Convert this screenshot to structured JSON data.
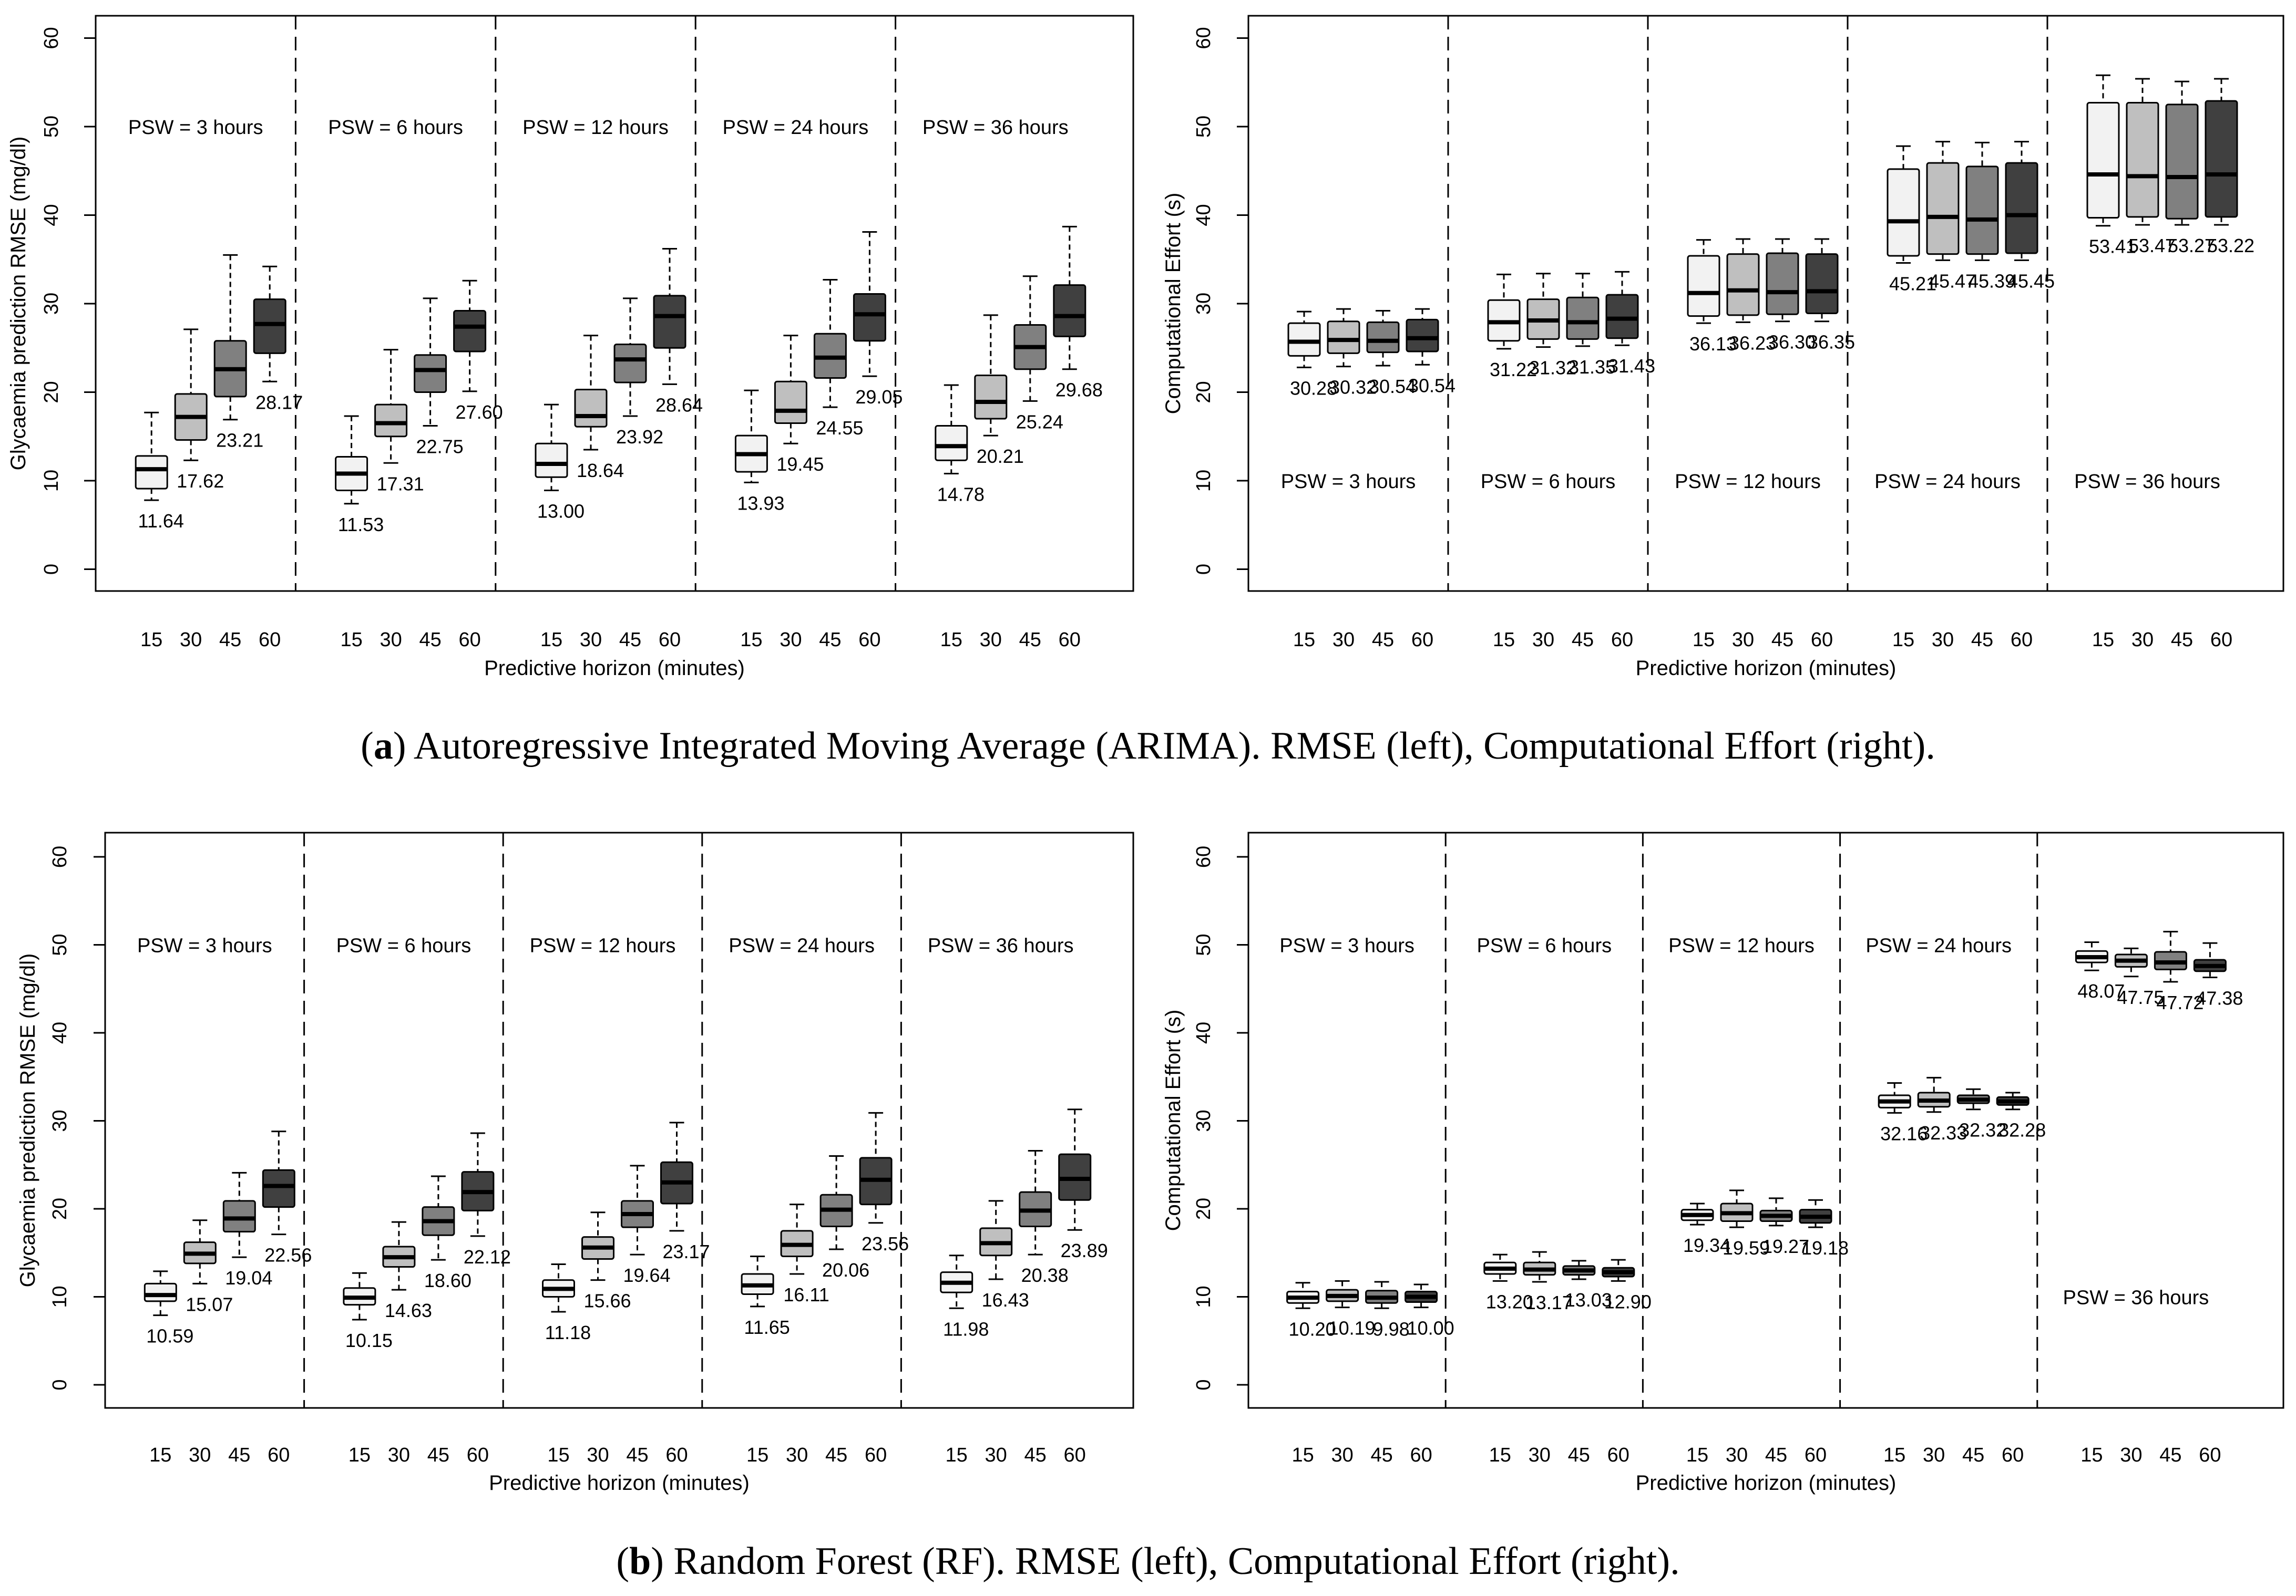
{
  "captions": [
    {
      "letter": "a",
      "text": ") Autoregressive Integrated Moving Average (ARIMA). RMSE (left), Computational Effort (right)."
    },
    {
      "letter": "b",
      "text": ") Random Forest (RF). RMSE (left), Computational Effort (right)."
    }
  ],
  "colors": {
    "h15": "#f2f2f2",
    "h30": "#bfbfbf",
    "h45": "#808080",
    "h60": "#404040",
    "frame": "#000000"
  },
  "chart_data": [
    {
      "id": "arima-rmse",
      "type": "box",
      "model": "ARIMA",
      "xlabel": "Predictive horizon (minutes)",
      "ylabel": "Glycaemia prediction RMSE (mg/dl)",
      "ylim": [
        0,
        60
      ],
      "yticks": [
        "0",
        "10",
        "20",
        "30",
        "40",
        "50",
        "60"
      ],
      "categories": [
        "15",
        "30",
        "45",
        "60"
      ],
      "label_pos": "below",
      "psw_label_y": 50,
      "groups": [
        {
          "label": "PSW = 3 hours",
          "boxes": [
            {
              "min": 7.8,
              "q1": 9.1,
              "median": 11.3,
              "q3": 12.8,
              "max": 17.7,
              "label": "11.64"
            },
            {
              "min": 12.3,
              "q1": 14.6,
              "median": 17.2,
              "q3": 19.8,
              "max": 27.1,
              "label": "17.62"
            },
            {
              "min": 16.9,
              "q1": 19.5,
              "median": 22.6,
              "q3": 25.8,
              "max": 35.5,
              "label": "23.21"
            },
            {
              "min": 21.2,
              "q1": 24.4,
              "median": 27.7,
              "q3": 30.5,
              "max": 34.2,
              "label": "28.17"
            }
          ]
        },
        {
          "label": "PSW = 6 hours",
          "boxes": [
            {
              "min": 7.4,
              "q1": 8.9,
              "median": 10.8,
              "q3": 12.7,
              "max": 17.3,
              "label": "11.53"
            },
            {
              "min": 12.0,
              "q1": 15.0,
              "median": 16.5,
              "q3": 18.6,
              "max": 24.8,
              "label": "17.31"
            },
            {
              "min": 16.2,
              "q1": 20.0,
              "median": 22.5,
              "q3": 24.2,
              "max": 30.6,
              "label": "22.75"
            },
            {
              "min": 20.1,
              "q1": 24.6,
              "median": 27.4,
              "q3": 29.2,
              "max": 32.6,
              "label": "27.60"
            }
          ]
        },
        {
          "label": "PSW = 12 hours",
          "boxes": [
            {
              "min": 8.9,
              "q1": 10.4,
              "median": 11.9,
              "q3": 14.2,
              "max": 18.6,
              "label": "13.00"
            },
            {
              "min": 13.5,
              "q1": 16.1,
              "median": 17.3,
              "q3": 20.3,
              "max": 26.4,
              "label": "18.64"
            },
            {
              "min": 17.3,
              "q1": 21.1,
              "median": 23.7,
              "q3": 25.4,
              "max": 30.6,
              "label": "23.92"
            },
            {
              "min": 20.9,
              "q1": 25.0,
              "median": 28.6,
              "q3": 30.9,
              "max": 36.2,
              "label": "28.64"
            }
          ]
        },
        {
          "label": "PSW = 24 hours",
          "boxes": [
            {
              "min": 9.8,
              "q1": 11.0,
              "median": 13.0,
              "q3": 15.1,
              "max": 20.2,
              "label": "13.93"
            },
            {
              "min": 14.2,
              "q1": 16.5,
              "median": 17.9,
              "q3": 21.2,
              "max": 26.4,
              "label": "19.45"
            },
            {
              "min": 18.3,
              "q1": 21.6,
              "median": 23.9,
              "q3": 26.6,
              "max": 32.7,
              "label": "24.55"
            },
            {
              "min": 21.8,
              "q1": 25.8,
              "median": 28.8,
              "q3": 31.1,
              "max": 38.1,
              "label": "29.05"
            }
          ]
        },
        {
          "label": "PSW = 36 hours",
          "boxes": [
            {
              "min": 10.8,
              "q1": 12.3,
              "median": 13.9,
              "q3": 16.2,
              "max": 20.8,
              "label": "14.78"
            },
            {
              "min": 15.1,
              "q1": 17.0,
              "median": 18.9,
              "q3": 21.9,
              "max": 28.7,
              "label": "20.21"
            },
            {
              "min": 19.0,
              "q1": 22.6,
              "median": 25.1,
              "q3": 27.6,
              "max": 33.1,
              "label": "25.24"
            },
            {
              "min": 22.6,
              "q1": 26.3,
              "median": 28.6,
              "q3": 32.1,
              "max": 38.7,
              "label": "29.68"
            }
          ]
        }
      ]
    },
    {
      "id": "arima-effort",
      "type": "box",
      "model": "ARIMA",
      "xlabel": "Predictive horizon (minutes)",
      "ylabel": "Computational Effort (s)",
      "ylim": [
        0,
        60
      ],
      "yticks": [
        "0",
        "10",
        "20",
        "30",
        "40",
        "50",
        "60"
      ],
      "categories": [
        "15",
        "30",
        "45",
        "60"
      ],
      "label_pos": "below",
      "psw_label_y": 10,
      "groups": [
        {
          "label": "PSW = 3 hours",
          "boxes": [
            {
              "min": 22.8,
              "q1": 24.1,
              "median": 25.7,
              "q3": 27.8,
              "max": 29.1,
              "label": "30.28"
            },
            {
              "min": 22.9,
              "q1": 24.4,
              "median": 25.9,
              "q3": 28.0,
              "max": 29.4,
              "label": "30.32"
            },
            {
              "min": 23.0,
              "q1": 24.5,
              "median": 25.8,
              "q3": 27.9,
              "max": 29.2,
              "label": "30.54"
            },
            {
              "min": 23.1,
              "q1": 24.6,
              "median": 26.1,
              "q3": 28.2,
              "max": 29.4,
              "label": "30.54"
            }
          ]
        },
        {
          "label": "PSW = 6 hours",
          "boxes": [
            {
              "min": 24.9,
              "q1": 25.8,
              "median": 27.9,
              "q3": 30.4,
              "max": 33.3,
              "label": "31.22"
            },
            {
              "min": 25.1,
              "q1": 26.0,
              "median": 28.1,
              "q3": 30.5,
              "max": 33.4,
              "label": "31.32"
            },
            {
              "min": 25.2,
              "q1": 26.0,
              "median": 27.9,
              "q3": 30.7,
              "max": 33.4,
              "label": "31.35"
            },
            {
              "min": 25.3,
              "q1": 26.1,
              "median": 28.3,
              "q3": 31.0,
              "max": 33.6,
              "label": "31.43"
            }
          ]
        },
        {
          "label": "PSW = 12 hours",
          "boxes": [
            {
              "min": 27.8,
              "q1": 28.6,
              "median": 31.2,
              "q3": 35.4,
              "max": 37.2,
              "label": "36.13"
            },
            {
              "min": 27.9,
              "q1": 28.7,
              "median": 31.5,
              "q3": 35.6,
              "max": 37.3,
              "label": "36.23"
            },
            {
              "min": 28.0,
              "q1": 28.8,
              "median": 31.3,
              "q3": 35.7,
              "max": 37.3,
              "label": "36.30"
            },
            {
              "min": 28.0,
              "q1": 28.9,
              "median": 31.4,
              "q3": 35.6,
              "max": 37.3,
              "label": "36.35"
            }
          ]
        },
        {
          "label": "PSW = 24 hours",
          "boxes": [
            {
              "min": 34.6,
              "q1": 35.4,
              "median": 39.3,
              "q3": 45.2,
              "max": 47.8,
              "label": "45.21"
            },
            {
              "min": 34.9,
              "q1": 35.6,
              "median": 39.8,
              "q3": 45.9,
              "max": 48.3,
              "label": "45.47"
            },
            {
              "min": 34.9,
              "q1": 35.6,
              "median": 39.5,
              "q3": 45.5,
              "max": 48.2,
              "label": "45.39"
            },
            {
              "min": 34.9,
              "q1": 35.7,
              "median": 40.0,
              "q3": 45.9,
              "max": 48.3,
              "label": "45.45"
            }
          ]
        },
        {
          "label": "PSW = 36 hours",
          "boxes": [
            {
              "min": 38.8,
              "q1": 39.7,
              "median": 44.6,
              "q3": 52.7,
              "max": 55.8,
              "label": "53.41"
            },
            {
              "min": 38.9,
              "q1": 39.8,
              "median": 44.4,
              "q3": 52.7,
              "max": 55.4,
              "label": "53.47"
            },
            {
              "min": 38.9,
              "q1": 39.6,
              "median": 44.3,
              "q3": 52.5,
              "max": 55.1,
              "label": "53.27"
            },
            {
              "min": 38.9,
              "q1": 39.8,
              "median": 44.6,
              "q3": 52.9,
              "max": 55.4,
              "label": "53.22"
            }
          ]
        }
      ]
    },
    {
      "id": "rf-rmse",
      "type": "box",
      "model": "RF",
      "xlabel": "Predictive horizon (minutes)",
      "ylabel": "Glycaemia prediction RMSE (mg/dl)",
      "ylim": [
        0,
        60
      ],
      "yticks": [
        "0",
        "10",
        "20",
        "30",
        "40",
        "50",
        "60"
      ],
      "categories": [
        "15",
        "30",
        "45",
        "60"
      ],
      "label_pos": "below",
      "psw_label_y": 50,
      "groups": [
        {
          "label": "PSW = 3 hours",
          "boxes": [
            {
              "min": 7.9,
              "q1": 9.5,
              "median": 10.2,
              "q3": 11.5,
              "max": 12.9,
              "label": "10.59"
            },
            {
              "min": 11.5,
              "q1": 13.8,
              "median": 14.9,
              "q3": 16.2,
              "max": 18.7,
              "label": "15.07"
            },
            {
              "min": 14.5,
              "q1": 17.4,
              "median": 18.9,
              "q3": 20.9,
              "max": 24.1,
              "label": "19.04"
            },
            {
              "min": 17.1,
              "q1": 20.2,
              "median": 22.6,
              "q3": 24.4,
              "max": 28.8,
              "label": "22.56"
            }
          ]
        },
        {
          "label": "PSW = 6 hours",
          "boxes": [
            {
              "min": 7.4,
              "q1": 9.1,
              "median": 9.9,
              "q3": 11.0,
              "max": 12.7,
              "label": "10.15"
            },
            {
              "min": 10.8,
              "q1": 13.4,
              "median": 14.5,
              "q3": 15.7,
              "max": 18.5,
              "label": "14.63"
            },
            {
              "min": 14.2,
              "q1": 17.0,
              "median": 18.6,
              "q3": 20.2,
              "max": 23.7,
              "label": "18.60"
            },
            {
              "min": 16.9,
              "q1": 19.8,
              "median": 21.9,
              "q3": 24.2,
              "max": 28.6,
              "label": "22.12"
            }
          ]
        },
        {
          "label": "PSW = 12 hours",
          "boxes": [
            {
              "min": 8.3,
              "q1": 10.0,
              "median": 10.9,
              "q3": 11.9,
              "max": 13.7,
              "label": "11.18"
            },
            {
              "min": 11.9,
              "q1": 14.3,
              "median": 15.6,
              "q3": 16.8,
              "max": 19.6,
              "label": "15.66"
            },
            {
              "min": 14.8,
              "q1": 17.9,
              "median": 19.4,
              "q3": 20.9,
              "max": 24.9,
              "label": "19.64"
            },
            {
              "min": 17.5,
              "q1": 20.6,
              "median": 23.0,
              "q3": 25.3,
              "max": 29.8,
              "label": "23.17"
            }
          ]
        },
        {
          "label": "PSW = 24 hours",
          "boxes": [
            {
              "min": 8.9,
              "q1": 10.3,
              "median": 11.3,
              "q3": 12.6,
              "max": 14.6,
              "label": "11.65"
            },
            {
              "min": 12.6,
              "q1": 14.6,
              "median": 15.9,
              "q3": 17.5,
              "max": 20.5,
              "label": "16.11"
            },
            {
              "min": 15.4,
              "q1": 18.0,
              "median": 19.9,
              "q3": 21.6,
              "max": 26.0,
              "label": "20.06"
            },
            {
              "min": 18.4,
              "q1": 20.5,
              "median": 23.3,
              "q3": 25.8,
              "max": 30.9,
              "label": "23.56"
            }
          ]
        },
        {
          "label": "PSW = 36 hours",
          "boxes": [
            {
              "min": 8.7,
              "q1": 10.5,
              "median": 11.6,
              "q3": 12.8,
              "max": 14.7,
              "label": "11.98"
            },
            {
              "min": 12.0,
              "q1": 14.7,
              "median": 16.1,
              "q3": 17.8,
              "max": 20.9,
              "label": "16.43"
            },
            {
              "min": 14.8,
              "q1": 18.0,
              "median": 19.8,
              "q3": 21.9,
              "max": 26.6,
              "label": "20.38"
            },
            {
              "min": 17.6,
              "q1": 21.0,
              "median": 23.4,
              "q3": 26.2,
              "max": 31.3,
              "label": "23.89"
            }
          ]
        }
      ]
    },
    {
      "id": "rf-effort",
      "type": "box",
      "model": "RF",
      "xlabel": "Predictive horizon (minutes)",
      "ylabel": "Computational Effort (s)",
      "ylim": [
        0,
        60
      ],
      "yticks": [
        "0",
        "10",
        "20",
        "30",
        "40",
        "50",
        "60"
      ],
      "categories": [
        "15",
        "30",
        "45",
        "60"
      ],
      "label_pos": "below",
      "psw_label_y": 50,
      "psw_label_y_last": 10,
      "groups": [
        {
          "label": "PSW = 3 hours",
          "boxes": [
            {
              "min": 8.7,
              "q1": 9.3,
              "median": 9.9,
              "q3": 10.6,
              "max": 11.6,
              "label": "10.20"
            },
            {
              "min": 8.8,
              "q1": 9.5,
              "median": 10.1,
              "q3": 10.8,
              "max": 11.8,
              "label": "10.19"
            },
            {
              "min": 8.7,
              "q1": 9.3,
              "median": 9.9,
              "q3": 10.7,
              "max": 11.7,
              "label": "9.98"
            },
            {
              "min": 8.8,
              "q1": 9.4,
              "median": 10.0,
              "q3": 10.6,
              "max": 11.4,
              "label": "10.00"
            }
          ]
        },
        {
          "label": "PSW = 6 hours",
          "boxes": [
            {
              "min": 11.8,
              "q1": 12.6,
              "median": 13.2,
              "q3": 13.9,
              "max": 14.8,
              "label": "13.20"
            },
            {
              "min": 11.7,
              "q1": 12.5,
              "median": 13.1,
              "q3": 13.9,
              "max": 15.1,
              "label": "13.17"
            },
            {
              "min": 12.0,
              "q1": 12.5,
              "median": 13.0,
              "q3": 13.5,
              "max": 14.1,
              "label": "13.03"
            },
            {
              "min": 11.8,
              "q1": 12.3,
              "median": 12.8,
              "q3": 13.3,
              "max": 14.2,
              "label": "12.90"
            }
          ]
        },
        {
          "label": "PSW = 12 hours",
          "boxes": [
            {
              "min": 18.2,
              "q1": 18.7,
              "median": 19.3,
              "q3": 19.9,
              "max": 20.6,
              "label": "19.34"
            },
            {
              "min": 17.9,
              "q1": 18.6,
              "median": 19.5,
              "q3": 20.6,
              "max": 22.1,
              "label": "19.59"
            },
            {
              "min": 18.1,
              "q1": 18.6,
              "median": 19.2,
              "q3": 19.8,
              "max": 21.2,
              "label": "19.27"
            },
            {
              "min": 17.9,
              "q1": 18.4,
              "median": 19.1,
              "q3": 19.9,
              "max": 21.0,
              "label": "19.18"
            }
          ]
        },
        {
          "label": "PSW = 24 hours",
          "boxes": [
            {
              "min": 30.9,
              "q1": 31.5,
              "median": 32.2,
              "q3": 32.9,
              "max": 34.3,
              "label": "32.16"
            },
            {
              "min": 31.0,
              "q1": 31.6,
              "median": 32.3,
              "q3": 33.2,
              "max": 34.9,
              "label": "32.33"
            },
            {
              "min": 31.3,
              "q1": 32.0,
              "median": 32.4,
              "q3": 32.9,
              "max": 33.6,
              "label": "32.32"
            },
            {
              "min": 31.3,
              "q1": 31.8,
              "median": 32.2,
              "q3": 32.7,
              "max": 33.2,
              "label": "32.28"
            }
          ]
        },
        {
          "label": "PSW = 36 hours",
          "boxes": [
            {
              "min": 47.1,
              "q1": 48.0,
              "median": 48.6,
              "q3": 49.3,
              "max": 50.3,
              "label": "48.07"
            },
            {
              "min": 46.4,
              "q1": 47.5,
              "median": 48.2,
              "q3": 48.9,
              "max": 49.6,
              "label": "47.75"
            },
            {
              "min": 45.8,
              "q1": 47.2,
              "median": 48.0,
              "q3": 49.2,
              "max": 51.5,
              "label": "47.72"
            },
            {
              "min": 46.3,
              "q1": 47.0,
              "median": 47.6,
              "q3": 48.3,
              "max": 50.2,
              "label": "47.38"
            }
          ]
        }
      ]
    }
  ]
}
